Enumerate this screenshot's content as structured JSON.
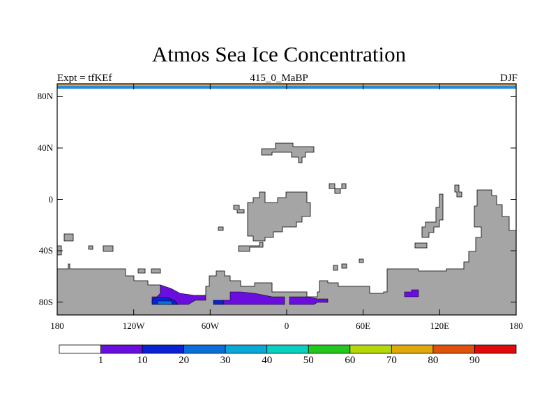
{
  "map": {
    "title": "Atmos Sea Ice Concentration",
    "left_label": "Expt = tfKEf",
    "center_label": "415_0_MaBP",
    "right_label": "DJF",
    "lat_ticks": [
      {
        "value": 80,
        "label": "80N"
      },
      {
        "value": 40,
        "label": "40N"
      },
      {
        "value": 0,
        "label": "0"
      },
      {
        "value": -40,
        "label": "40S"
      },
      {
        "value": -80,
        "label": "80S"
      }
    ],
    "lon_ticks": [
      {
        "value": -180,
        "label": "180"
      },
      {
        "value": -120,
        "label": "120W"
      },
      {
        "value": -60,
        "label": "60W"
      },
      {
        "value": 0,
        "label": "0"
      },
      {
        "value": 60,
        "label": "60E"
      },
      {
        "value": 120,
        "label": "120E"
      },
      {
        "value": 180,
        "label": "180"
      }
    ],
    "land_color": "#a5a5a5"
  },
  "colorbar": {
    "colors": [
      "#ffffff",
      "#6a0ee0",
      "#0a22d2",
      "#0a6fd9",
      "#0aa8d8",
      "#0ad0c0",
      "#22c81e",
      "#b4d80a",
      "#e0a80a",
      "#e0520a",
      "#e00a0a"
    ],
    "labels": [
      "1",
      "10",
      "20",
      "30",
      "40",
      "50",
      "60",
      "70",
      "80",
      "90"
    ]
  }
}
